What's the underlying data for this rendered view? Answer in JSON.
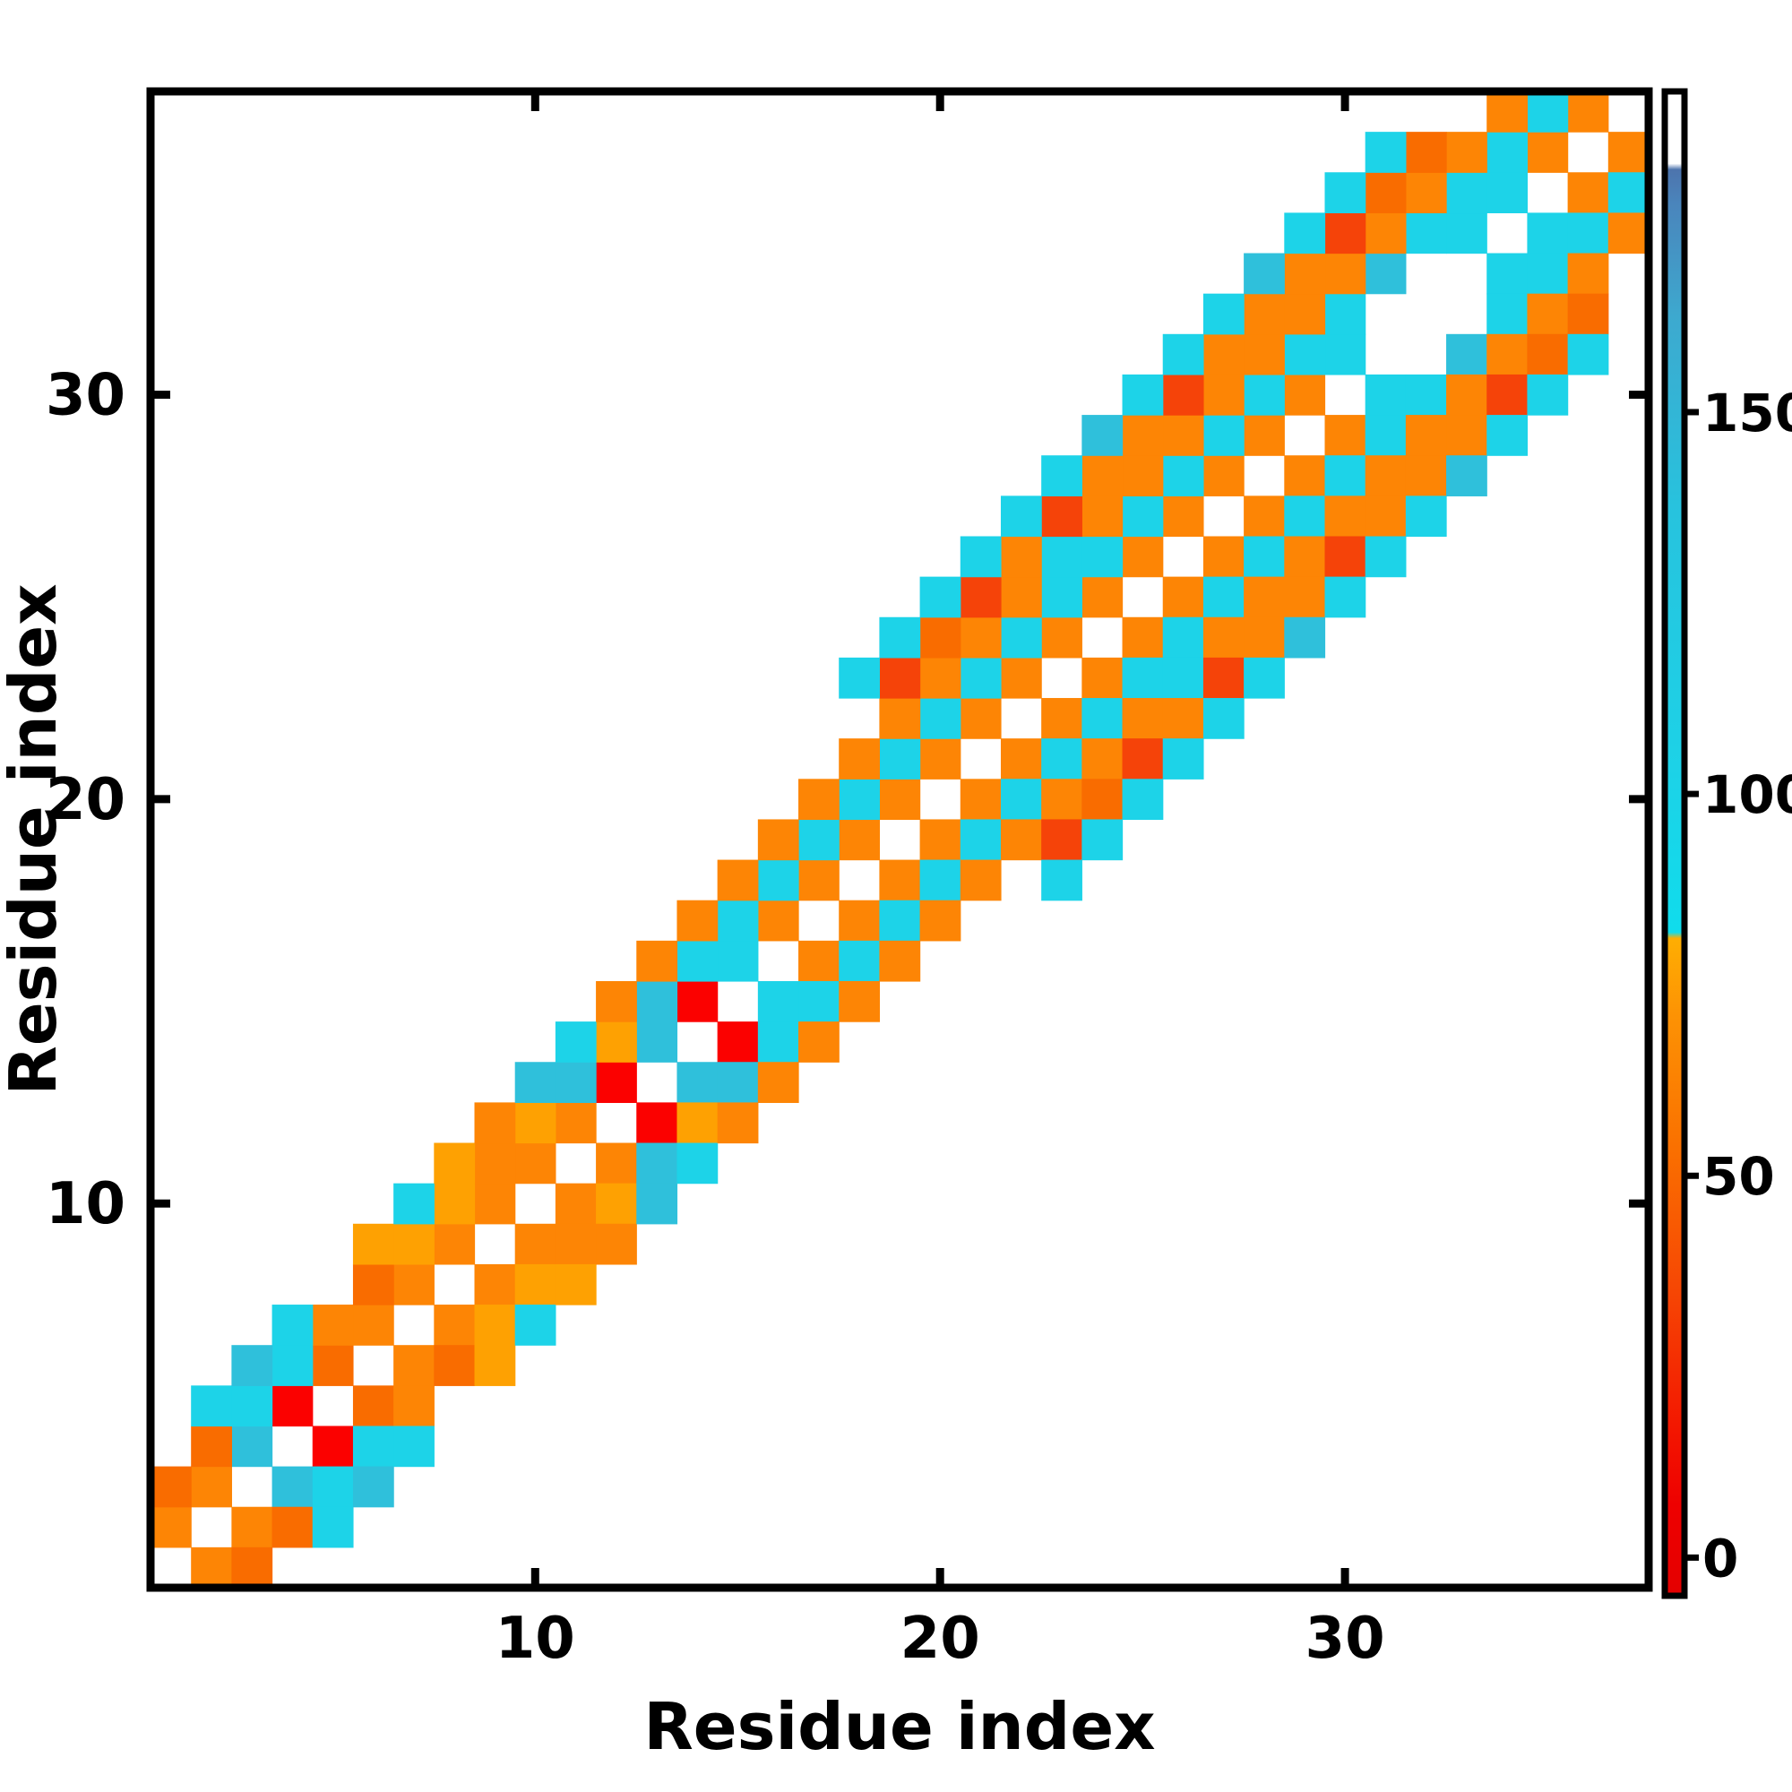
{
  "chart_data": {
    "type": "heatmap",
    "title": "",
    "xlabel": "Residue index",
    "ylabel": "Residue index",
    "n_residues": 37,
    "axis_range": [
      1,
      37
    ],
    "x_ticks": [
      10,
      20,
      30
    ],
    "y_ticks": [
      10,
      20,
      30
    ],
    "grid": false,
    "background_value": "white",
    "symmetric": true,
    "palette": {
      "R": "#fb0100",
      "RO": "#f54309",
      "DO": "#f96c00",
      "O": "#fd8505",
      "A": "#fea102",
      "C": "#1dd3e8",
      "S": "#2fc0db"
    },
    "class_values": {
      "R": 5,
      "RO": 25,
      "DO": 45,
      "O": 62,
      "A": 75,
      "C": 100,
      "S": 140
    },
    "colorbar": {
      "ticks": [
        0,
        50,
        100,
        150
      ],
      "value_range": [
        -5,
        192
      ],
      "orientation": "vertical",
      "position": "right",
      "gradient_stops_bottom_to_top": [
        [
          0.0,
          "#e40000"
        ],
        [
          0.06,
          "#ee0000"
        ],
        [
          0.11,
          "#f31600"
        ],
        [
          0.2,
          "#f64504"
        ],
        [
          0.3,
          "#fa7100"
        ],
        [
          0.385,
          "#fd9204"
        ],
        [
          0.437,
          "#feae02"
        ],
        [
          0.441,
          "#10dcec"
        ],
        [
          0.55,
          "#1dd2e7"
        ],
        [
          0.72,
          "#27c3de"
        ],
        [
          0.85,
          "#3da9cf"
        ],
        [
          0.925,
          "#4a85bc"
        ],
        [
          0.948,
          "#4d74ad"
        ],
        [
          0.952,
          "#ffffff"
        ],
        [
          1.0,
          "#ffffff"
        ]
      ]
    },
    "contacts": [
      [
        1,
        2,
        "O"
      ],
      [
        2,
        3,
        "O"
      ],
      [
        3,
        4,
        "S"
      ],
      [
        4,
        5,
        "R"
      ],
      [
        5,
        6,
        "DO"
      ],
      [
        6,
        7,
        "O"
      ],
      [
        7,
        8,
        "O"
      ],
      [
        8,
        9,
        "O"
      ],
      [
        9,
        10,
        "O"
      ],
      [
        10,
        11,
        "O"
      ],
      [
        11,
        12,
        "O"
      ],
      [
        12,
        13,
        "R"
      ],
      [
        13,
        14,
        "S"
      ],
      [
        14,
        15,
        "R"
      ],
      [
        15,
        16,
        "C"
      ],
      [
        16,
        17,
        "O"
      ],
      [
        17,
        18,
        "O"
      ],
      [
        18,
        19,
        "O"
      ],
      [
        19,
        20,
        "O"
      ],
      [
        20,
        21,
        "O"
      ],
      [
        21,
        22,
        "O"
      ],
      [
        22,
        23,
        "O"
      ],
      [
        23,
        24,
        "O"
      ],
      [
        24,
        25,
        "O"
      ],
      [
        25,
        26,
        "O"
      ],
      [
        26,
        27,
        "O"
      ],
      [
        27,
        28,
        "O"
      ],
      [
        28,
        29,
        "O"
      ],
      [
        29,
        30,
        "O"
      ],
      [
        30,
        31,
        "C"
      ],
      [
        33,
        34,
        "C"
      ],
      [
        34,
        35,
        "C"
      ],
      [
        35,
        36,
        "O"
      ],
      [
        36,
        37,
        "O"
      ],
      [
        1,
        3,
        "DO"
      ],
      [
        2,
        4,
        "DO"
      ],
      [
        3,
        5,
        "C"
      ],
      [
        4,
        6,
        "C"
      ],
      [
        5,
        7,
        "O"
      ],
      [
        6,
        8,
        "DO"
      ],
      [
        7,
        9,
        "A"
      ],
      [
        8,
        10,
        "A"
      ],
      [
        9,
        11,
        "O"
      ],
      [
        10,
        12,
        "A"
      ],
      [
        11,
        13,
        "S"
      ],
      [
        12,
        14,
        "A"
      ],
      [
        13,
        15,
        "S"
      ],
      [
        14,
        16,
        "C"
      ],
      [
        15,
        17,
        "C"
      ],
      [
        16,
        18,
        "C"
      ],
      [
        17,
        19,
        "C"
      ],
      [
        18,
        20,
        "C"
      ],
      [
        19,
        21,
        "C"
      ],
      [
        20,
        22,
        "C"
      ],
      [
        21,
        23,
        "C"
      ],
      [
        22,
        24,
        "C"
      ],
      [
        23,
        25,
        "C"
      ],
      [
        24,
        26,
        "C"
      ],
      [
        25,
        27,
        "C"
      ],
      [
        26,
        28,
        "C"
      ],
      [
        27,
        29,
        "C"
      ],
      [
        28,
        30,
        "C"
      ],
      [
        29,
        31,
        "C"
      ],
      [
        30,
        32,
        "C"
      ],
      [
        31,
        33,
        "S"
      ],
      [
        32,
        34,
        "C"
      ],
      [
        33,
        35,
        "C"
      ],
      [
        34,
        36,
        "C"
      ],
      [
        35,
        37,
        "C"
      ],
      [
        2,
        5,
        "C"
      ],
      [
        3,
        6,
        "S"
      ],
      [
        4,
        7,
        "C"
      ],
      [
        6,
        9,
        "A"
      ],
      [
        7,
        10,
        "C"
      ],
      [
        8,
        11,
        "A"
      ],
      [
        9,
        12,
        "O"
      ],
      [
        10,
        13,
        "S"
      ],
      [
        11,
        14,
        "C"
      ],
      [
        12,
        15,
        "O"
      ],
      [
        13,
        16,
        "O"
      ],
      [
        14,
        17,
        "O"
      ],
      [
        15,
        18,
        "O"
      ],
      [
        16,
        19,
        "O"
      ],
      [
        17,
        20,
        "O"
      ],
      [
        18,
        21,
        "O"
      ],
      [
        19,
        22,
        "O"
      ],
      [
        20,
        23,
        "O"
      ],
      [
        21,
        24,
        "O"
      ],
      [
        22,
        25,
        "O"
      ],
      [
        23,
        26,
        "C"
      ],
      [
        24,
        27,
        "O"
      ],
      [
        25,
        28,
        "O"
      ],
      [
        26,
        29,
        "O"
      ],
      [
        27,
        30,
        "O"
      ],
      [
        28,
        31,
        "O"
      ],
      [
        29,
        32,
        "O"
      ],
      [
        30,
        33,
        "O"
      ],
      [
        31,
        34,
        "O"
      ],
      [
        32,
        35,
        "O"
      ],
      [
        33,
        36,
        "O"
      ],
      [
        34,
        37,
        "O"
      ],
      [
        19,
        23,
        "RO"
      ],
      [
        20,
        24,
        "DO"
      ],
      [
        21,
        25,
        "RO"
      ],
      [
        22,
        26,
        "O"
      ],
      [
        23,
        27,
        "RO"
      ],
      [
        24,
        28,
        "O"
      ],
      [
        25,
        29,
        "O"
      ],
      [
        26,
        30,
        "RO"
      ],
      [
        27,
        31,
        "O"
      ],
      [
        28,
        32,
        "O"
      ],
      [
        29,
        33,
        "O"
      ],
      [
        30,
        34,
        "RO"
      ],
      [
        31,
        35,
        "DO"
      ],
      [
        32,
        36,
        "DO"
      ],
      [
        18,
        23,
        "C"
      ],
      [
        19,
        24,
        "C"
      ],
      [
        20,
        25,
        "C"
      ],
      [
        21,
        26,
        "C"
      ],
      [
        22,
        27,
        "C"
      ],
      [
        23,
        28,
        "C"
      ],
      [
        24,
        29,
        "S"
      ],
      [
        25,
        30,
        "C"
      ],
      [
        26,
        31,
        "C"
      ],
      [
        27,
        32,
        "C"
      ],
      [
        28,
        33,
        "S"
      ],
      [
        29,
        34,
        "C"
      ],
      [
        30,
        35,
        "C"
      ],
      [
        31,
        36,
        "C"
      ]
    ]
  }
}
